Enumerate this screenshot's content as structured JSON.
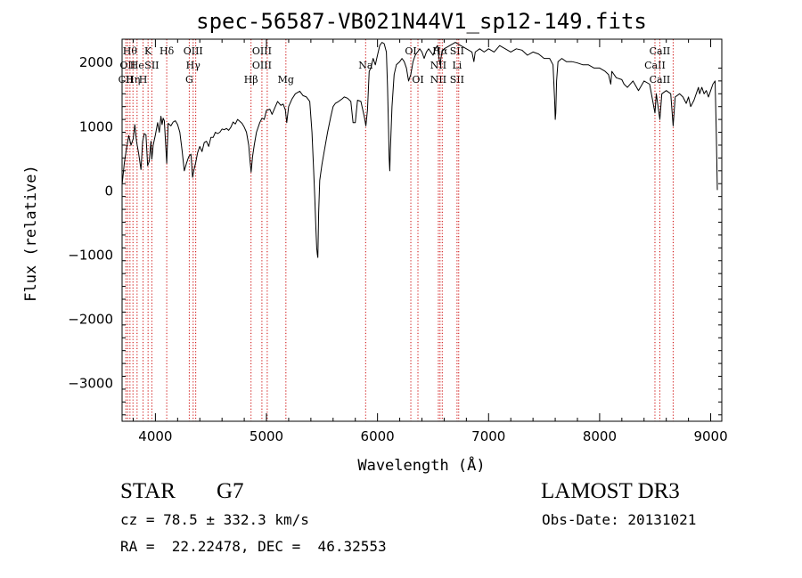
{
  "chart_data": {
    "type": "line",
    "title": "spec-56587-VB021N44V1_sp12-149.fits",
    "xlabel": "Wavelength (Å)",
    "ylabel": "Flux (relative)",
    "xlim": [
      3700,
      9100
    ],
    "ylim": [
      -3600,
      2350
    ],
    "xticks": [
      4000,
      5000,
      6000,
      7000,
      8000,
      9000
    ],
    "yticks": [
      -3000,
      -2000,
      -1000,
      0,
      1000,
      2000
    ],
    "grid": false,
    "series": [
      {
        "points": [
          [
            3700,
            80
          ],
          [
            3720,
            420
          ],
          [
            3740,
            650
          ],
          [
            3760,
            850
          ],
          [
            3780,
            700
          ],
          [
            3800,
            800
          ],
          [
            3815,
            1020
          ],
          [
            3830,
            760
          ],
          [
            3850,
            560
          ],
          [
            3870,
            320
          ],
          [
            3885,
            760
          ],
          [
            3900,
            880
          ],
          [
            3915,
            860
          ],
          [
            3930,
            380
          ],
          [
            3945,
            450
          ],
          [
            3960,
            760
          ],
          [
            3968,
            480
          ],
          [
            3980,
            700
          ],
          [
            4000,
            860
          ],
          [
            4020,
            1050
          ],
          [
            4035,
            900
          ],
          [
            4050,
            1150
          ],
          [
            4060,
            1020
          ],
          [
            4070,
            1120
          ],
          [
            4080,
            1080
          ],
          [
            4102,
            420
          ],
          [
            4115,
            1040
          ],
          [
            4140,
            1000
          ],
          [
            4160,
            1060
          ],
          [
            4180,
            1080
          ],
          [
            4200,
            1020
          ],
          [
            4220,
            900
          ],
          [
            4240,
            620
          ],
          [
            4260,
            300
          ],
          [
            4280,
            420
          ],
          [
            4300,
            520
          ],
          [
            4320,
            560
          ],
          [
            4335,
            200
          ],
          [
            4345,
            300
          ],
          [
            4362,
            420
          ],
          [
            4380,
            580
          ],
          [
            4400,
            680
          ],
          [
            4420,
            600
          ],
          [
            4440,
            740
          ],
          [
            4460,
            760
          ],
          [
            4480,
            680
          ],
          [
            4500,
            820
          ],
          [
            4520,
            820
          ],
          [
            4540,
            900
          ],
          [
            4560,
            880
          ],
          [
            4580,
            900
          ],
          [
            4600,
            950
          ],
          [
            4620,
            940
          ],
          [
            4640,
            960
          ],
          [
            4660,
            930
          ],
          [
            4680,
            980
          ],
          [
            4700,
            1060
          ],
          [
            4720,
            1030
          ],
          [
            4740,
            1100
          ],
          [
            4760,
            1070
          ],
          [
            4780,
            1040
          ],
          [
            4800,
            980
          ],
          [
            4820,
            900
          ],
          [
            4840,
            700
          ],
          [
            4852,
            450
          ],
          [
            4862,
            280
          ],
          [
            4875,
            520
          ],
          [
            4890,
            700
          ],
          [
            4910,
            900
          ],
          [
            4940,
            1050
          ],
          [
            4960,
            1120
          ],
          [
            4980,
            1100
          ],
          [
            5000,
            1240
          ],
          [
            5030,
            1260
          ],
          [
            5050,
            1180
          ],
          [
            5080,
            1300
          ],
          [
            5100,
            1380
          ],
          [
            5130,
            1320
          ],
          [
            5150,
            1340
          ],
          [
            5170,
            1250
          ],
          [
            5183,
            1050
          ],
          [
            5200,
            1300
          ],
          [
            5230,
            1420
          ],
          [
            5260,
            1500
          ],
          [
            5300,
            1540
          ],
          [
            5330,
            1470
          ],
          [
            5360,
            1450
          ],
          [
            5390,
            1380
          ],
          [
            5410,
            900
          ],
          [
            5425,
            300
          ],
          [
            5435,
            -100
          ],
          [
            5445,
            -600
          ],
          [
            5452,
            -900
          ],
          [
            5458,
            -1000
          ],
          [
            5463,
            -1050
          ],
          [
            5470,
            -350
          ],
          [
            5480,
            150
          ],
          [
            5500,
            400
          ],
          [
            5520,
            600
          ],
          [
            5550,
            900
          ],
          [
            5580,
            1150
          ],
          [
            5600,
            1300
          ],
          [
            5620,
            1350
          ],
          [
            5650,
            1380
          ],
          [
            5680,
            1420
          ],
          [
            5700,
            1450
          ],
          [
            5730,
            1430
          ],
          [
            5760,
            1380
          ],
          [
            5780,
            1050
          ],
          [
            5800,
            1050
          ],
          [
            5820,
            1400
          ],
          [
            5850,
            1380
          ],
          [
            5880,
            1150
          ],
          [
            5895,
            1000
          ],
          [
            5910,
            1250
          ],
          [
            5925,
            1850
          ],
          [
            5940,
            1900
          ],
          [
            5960,
            2050
          ],
          [
            5980,
            1950
          ],
          [
            6000,
            2100
          ],
          [
            6020,
            2250
          ],
          [
            6040,
            2300
          ],
          [
            6060,
            2280
          ],
          [
            6080,
            2150
          ],
          [
            6090,
            1600
          ],
          [
            6100,
            900
          ],
          [
            6105,
            500
          ],
          [
            6110,
            300
          ],
          [
            6115,
            600
          ],
          [
            6130,
            1300
          ],
          [
            6150,
            1800
          ],
          [
            6170,
            1950
          ],
          [
            6200,
            2000
          ],
          [
            6220,
            2050
          ],
          [
            6240,
            2000
          ],
          [
            6260,
            1900
          ],
          [
            6280,
            1700
          ],
          [
            6300,
            1800
          ],
          [
            6320,
            2000
          ],
          [
            6340,
            2100
          ],
          [
            6360,
            2150
          ],
          [
            6380,
            2200
          ],
          [
            6400,
            2150
          ],
          [
            6420,
            2050
          ],
          [
            6440,
            2150
          ],
          [
            6460,
            2200
          ],
          [
            6480,
            2150
          ],
          [
            6500,
            2100
          ],
          [
            6520,
            2200
          ],
          [
            6540,
            2250
          ],
          [
            6550,
            2100
          ],
          [
            6563,
            1950
          ],
          [
            6580,
            2150
          ],
          [
            6600,
            2200
          ],
          [
            6650,
            2250
          ],
          [
            6700,
            2300
          ],
          [
            6750,
            2250
          ],
          [
            6800,
            2200
          ],
          [
            6850,
            2150
          ],
          [
            6868,
            2000
          ],
          [
            6880,
            2150
          ],
          [
            6920,
            2200
          ],
          [
            6960,
            2150
          ],
          [
            7000,
            2200
          ],
          [
            7050,
            2150
          ],
          [
            7100,
            2250
          ],
          [
            7150,
            2200
          ],
          [
            7200,
            2150
          ],
          [
            7250,
            2200
          ],
          [
            7300,
            2180
          ],
          [
            7350,
            2100
          ],
          [
            7400,
            2150
          ],
          [
            7450,
            2120
          ],
          [
            7500,
            2050
          ],
          [
            7550,
            2050
          ],
          [
            7580,
            1950
          ],
          [
            7595,
            1400
          ],
          [
            7600,
            1100
          ],
          [
            7605,
            1200
          ],
          [
            7612,
            1700
          ],
          [
            7625,
            2000
          ],
          [
            7660,
            2050
          ],
          [
            7700,
            2000
          ],
          [
            7750,
            2000
          ],
          [
            7800,
            1980
          ],
          [
            7850,
            1950
          ],
          [
            7900,
            1950
          ],
          [
            7950,
            1900
          ],
          [
            8000,
            1900
          ],
          [
            8050,
            1850
          ],
          [
            8080,
            1800
          ],
          [
            8100,
            1650
          ],
          [
            8110,
            1850
          ],
          [
            8150,
            1750
          ],
          [
            8200,
            1720
          ],
          [
            8220,
            1650
          ],
          [
            8250,
            1600
          ],
          [
            8300,
            1700
          ],
          [
            8350,
            1550
          ],
          [
            8400,
            1700
          ],
          [
            8450,
            1650
          ],
          [
            8498,
            1200
          ],
          [
            8510,
            1500
          ],
          [
            8542,
            1100
          ],
          [
            8560,
            1500
          ],
          [
            8600,
            1550
          ],
          [
            8640,
            1500
          ],
          [
            8662,
            1000
          ],
          [
            8680,
            1450
          ],
          [
            8720,
            1500
          ],
          [
            8750,
            1450
          ],
          [
            8780,
            1350
          ],
          [
            8800,
            1450
          ],
          [
            8820,
            1300
          ],
          [
            8850,
            1400
          ],
          [
            8890,
            1600
          ],
          [
            8900,
            1500
          ],
          [
            8920,
            1600
          ],
          [
            8940,
            1500
          ],
          [
            8960,
            1550
          ],
          [
            8980,
            1450
          ],
          [
            9000,
            1550
          ],
          [
            9020,
            1650
          ],
          [
            9040,
            1700
          ],
          [
            9050,
            900
          ],
          [
            9060,
            0
          ]
        ]
      }
    ],
    "lines": [
      {
        "x": 3734,
        "labels": [
          {
            "text": "CII",
            "row": 3
          }
        ]
      },
      {
        "x": 3750,
        "labels": [
          {
            "text": "OII",
            "row": 2
          }
        ]
      },
      {
        "x": 3771,
        "labels": [
          {
            "text": "Hθ",
            "row": 1
          }
        ]
      },
      {
        "x": 3798,
        "labels": [
          {
            "text": "Hη",
            "row": 3
          }
        ]
      },
      {
        "x": 3835,
        "labels": [
          {
            "text": "He",
            "row": 2
          }
        ]
      },
      {
        "x": 3889,
        "labels": [
          {
            "text": "H",
            "row": 3
          }
        ]
      },
      {
        "x": 3934,
        "labels": [
          {
            "text": "K",
            "row": 1
          }
        ]
      },
      {
        "x": 3968,
        "labels": [
          {
            "text": "SII",
            "row": 2
          }
        ]
      },
      {
        "x": 4102,
        "labels": [
          {
            "text": "Hδ",
            "row": 1
          }
        ]
      },
      {
        "x": 4305,
        "labels": [
          {
            "text": "G",
            "row": 3
          }
        ]
      },
      {
        "x": 4340,
        "labels": [
          {
            "text": "OIII",
            "row": 1
          },
          {
            "text": "Hγ",
            "row": 2
          }
        ]
      },
      {
        "x": 4363,
        "labels": []
      },
      {
        "x": 4861,
        "labels": [
          {
            "text": "Hβ",
            "row": 3
          }
        ]
      },
      {
        "x": 4959,
        "labels": [
          {
            "text": "OIII",
            "row": 1
          },
          {
            "text": "OIII",
            "row": 2
          }
        ]
      },
      {
        "x": 5007,
        "labels": []
      },
      {
        "x": 5175,
        "labels": [
          {
            "text": "Mg",
            "row": 3
          }
        ]
      },
      {
        "x": 5893,
        "labels": [
          {
            "text": "Na",
            "row": 2
          }
        ]
      },
      {
        "x": 6300,
        "labels": [
          {
            "text": "OI",
            "row": 1
          }
        ]
      },
      {
        "x": 6364,
        "labels": [
          {
            "text": "OI",
            "row": 3
          }
        ]
      },
      {
        "x": 6548,
        "labels": [
          {
            "text": "NII",
            "row": 2
          },
          {
            "text": "NII",
            "row": 3
          }
        ]
      },
      {
        "x": 6563,
        "labels": [
          {
            "text": "Hα",
            "row": 1
          }
        ]
      },
      {
        "x": 6583,
        "labels": []
      },
      {
        "x": 6716,
        "labels": [
          {
            "text": "SII",
            "row": 1
          },
          {
            "text": "Li",
            "row": 2
          },
          {
            "text": "SII",
            "row": 3
          }
        ]
      },
      {
        "x": 6731,
        "labels": []
      },
      {
        "x": 8498,
        "labels": [
          {
            "text": "CaII",
            "row": 2
          }
        ]
      },
      {
        "x": 8542,
        "labels": [
          {
            "text": "CaII",
            "row": 1
          },
          {
            "text": "CaII",
            "row": 3
          }
        ]
      },
      {
        "x": 8662,
        "labels": []
      }
    ],
    "line_color": "#cc0000"
  },
  "info": {
    "class": "STAR",
    "subclass": "G7",
    "survey": "LAMOST DR3",
    "redshift": "cz = 78.5 ± 332.3 km/s",
    "obsdate": "Obs-Date: 20131021",
    "coords": "RA =  22.22478, DEC =  46.32553"
  }
}
